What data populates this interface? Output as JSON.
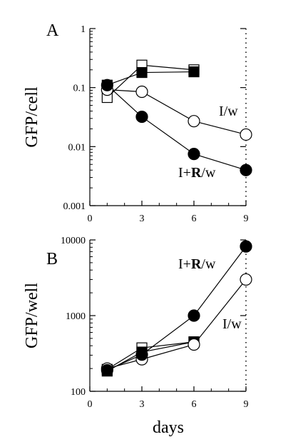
{
  "chart_data": [
    {
      "type": "scatter",
      "panel_label": "A",
      "ylabel": "GFP/cell",
      "xlabel": "",
      "yscale": "log",
      "ylim": [
        0.001,
        1
      ],
      "xlim": [
        0,
        9
      ],
      "x_ticks": [
        "0",
        "3",
        "6",
        "9"
      ],
      "y_ticks": [
        "0.001",
        "0.01",
        "0.1",
        "1"
      ],
      "series": [
        {
          "marker": "open-square",
          "x": [
            1,
            3,
            6
          ],
          "y": [
            0.068,
            0.24,
            0.2
          ]
        },
        {
          "marker": "filled-square",
          "x": [
            1,
            3,
            6
          ],
          "y": [
            0.11,
            0.18,
            0.185
          ]
        },
        {
          "name": "I/w",
          "marker": "open-circle",
          "x": [
            1,
            3,
            6,
            9
          ],
          "y": [
            0.092,
            0.085,
            0.027,
            0.016
          ]
        },
        {
          "name": "I+R/w",
          "marker": "filled-circle",
          "x": [
            1,
            3,
            6,
            9
          ],
          "y": [
            0.11,
            0.032,
            0.0075,
            0.004
          ]
        }
      ],
      "annotations": [
        {
          "text": "I/w",
          "anchor": "open-circle-series"
        },
        {
          "text_parts": [
            "I+",
            "R",
            "/w"
          ],
          "bold_part": "R",
          "anchor": "filled-circle-series"
        }
      ]
    },
    {
      "type": "scatter",
      "panel_label": "B",
      "ylabel": "GFP/well",
      "xlabel": "days",
      "yscale": "log",
      "ylim": [
        100,
        10000
      ],
      "xlim": [
        0,
        9
      ],
      "x_ticks": [
        "0",
        "3",
        "6",
        "9"
      ],
      "y_ticks": [
        "100",
        "1000",
        "10000"
      ],
      "series": [
        {
          "marker": "open-square",
          "x": [
            1,
            3,
            6
          ],
          "y": [
            195,
            375,
            450
          ]
        },
        {
          "marker": "filled-square",
          "x": [
            1,
            3,
            6
          ],
          "y": [
            185,
            330,
            450
          ]
        },
        {
          "name": "I/w",
          "marker": "open-circle",
          "x": [
            1,
            3,
            6,
            9
          ],
          "y": [
            200,
            265,
            415,
            3000
          ]
        },
        {
          "name": "I+R/w",
          "marker": "filled-circle",
          "x": [
            1,
            3,
            6,
            9
          ],
          "y": [
            190,
            305,
            1000,
            8200
          ]
        }
      ],
      "annotations": [
        {
          "text_parts": [
            "I+",
            "R",
            "/w"
          ],
          "bold_part": "R",
          "anchor": "filled-circle-series"
        },
        {
          "text": "I/w",
          "anchor": "open-circle-series"
        }
      ]
    }
  ]
}
